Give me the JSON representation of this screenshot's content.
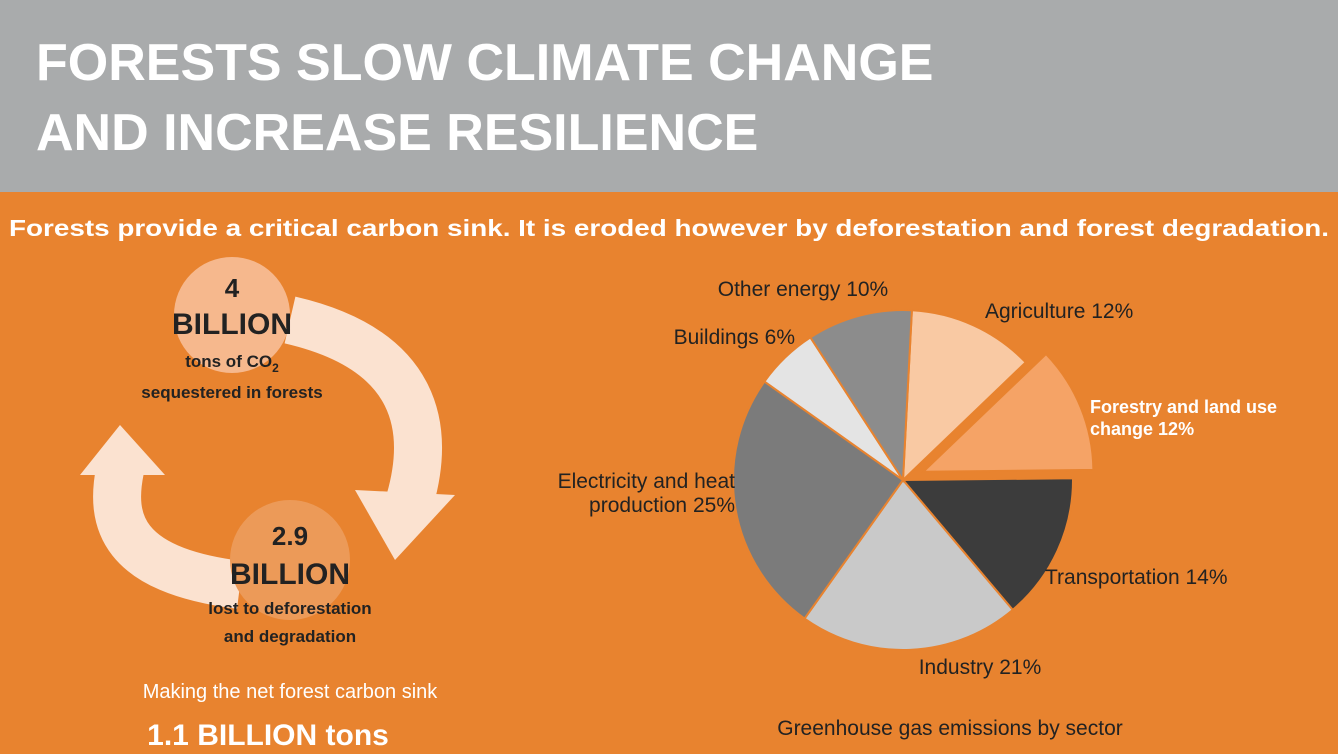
{
  "header": {
    "title_lines": [
      "FORESTS SLOW CLIMATE CHANGE",
      "AND INCREASE RESILIENCE"
    ]
  },
  "subtitle": "Forests provide a critical carbon sink. It is eroded however by deforestation and forest degradation.",
  "sink": {
    "top": {
      "number": "4",
      "unit": "BILLION",
      "line1": "tons of CO",
      "sub": "2",
      "line2": "sequestered in forests"
    },
    "bottom": {
      "number": "2.9",
      "unit": "BILLION",
      "line1": "lost to deforestation",
      "line2": "and degradation"
    },
    "net_text": "Making the net forest carbon sink",
    "net_value": "1.1 BILLION tons"
  },
  "chart_data": {
    "type": "pie",
    "title": "Greenhouse gas emissions by sector",
    "categories": [
      "Agriculture",
      "Forestry and land use change",
      "Transportation",
      "Industry",
      "Electricity and heat production",
      "Buildings",
      "Other energy"
    ],
    "values": [
      12,
      12,
      14,
      21,
      25,
      6,
      10
    ],
    "value_labels": [
      "12%",
      "12%",
      "14%",
      "21%",
      "25%",
      "6%",
      "10%"
    ],
    "colors": [
      "#f9c9a3",
      "#f5a366",
      "#3c3c3c",
      "#c9c9c9",
      "#7b7b7b",
      "#e4e4e4",
      "#8c8c8c"
    ],
    "exploded": [
      false,
      true,
      false,
      false,
      false,
      false,
      false
    ]
  }
}
